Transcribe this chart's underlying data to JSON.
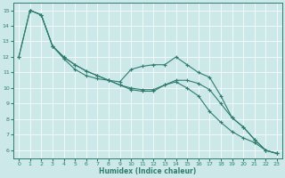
{
  "xlabel": "Humidex (Indice chaleur)",
  "background_color": "#cce8e8",
  "grid_color": "#ffffff",
  "line_color": "#2e7d6e",
  "xlim": [
    -0.5,
    23.5
  ],
  "ylim": [
    5.5,
    15.5
  ],
  "yticks": [
    6,
    7,
    8,
    9,
    10,
    11,
    12,
    13,
    14,
    15
  ],
  "xticks": [
    0,
    1,
    2,
    3,
    4,
    5,
    6,
    7,
    8,
    9,
    10,
    11,
    12,
    13,
    14,
    15,
    16,
    17,
    18,
    19,
    20,
    21,
    22,
    23
  ],
  "line1_x": [
    0,
    1,
    2,
    3,
    4,
    5,
    6,
    7,
    8,
    9,
    10,
    11,
    12,
    13,
    14,
    15,
    16,
    17,
    18,
    19,
    20,
    21,
    22,
    23
  ],
  "line1_y": [
    12,
    15,
    14.7,
    12.7,
    12.0,
    11.5,
    11.1,
    10.8,
    10.5,
    10.2,
    9.9,
    9.8,
    9.8,
    10.2,
    10.5,
    10.5,
    10.3,
    9.9,
    9.0,
    8.1,
    7.5,
    6.7,
    6.0,
    5.8
  ],
  "line2_x": [
    1,
    2,
    3,
    4,
    5,
    6,
    7,
    8,
    9,
    10,
    11,
    12,
    13,
    14,
    15,
    16,
    17,
    18,
    19,
    20,
    21,
    22,
    23
  ],
  "line2_y": [
    15,
    14.7,
    12.7,
    11.9,
    11.2,
    10.8,
    10.6,
    10.5,
    10.4,
    11.2,
    11.4,
    11.5,
    11.5,
    12.0,
    11.5,
    11.0,
    10.7,
    9.5,
    8.1,
    7.5,
    6.7,
    6.0,
    5.8
  ],
  "line3_x": [
    0,
    1,
    2,
    3,
    4,
    5,
    6,
    7,
    8,
    9,
    10,
    11,
    12,
    13,
    14,
    15,
    16,
    17,
    18,
    19,
    20,
    21,
    22,
    23
  ],
  "line3_y": [
    12,
    15,
    14.7,
    12.7,
    12.0,
    11.5,
    11.1,
    10.8,
    10.5,
    10.2,
    10.0,
    9.9,
    9.9,
    10.2,
    10.4,
    10.0,
    9.5,
    8.5,
    7.8,
    7.2,
    6.8,
    6.5,
    6.0,
    5.8
  ]
}
